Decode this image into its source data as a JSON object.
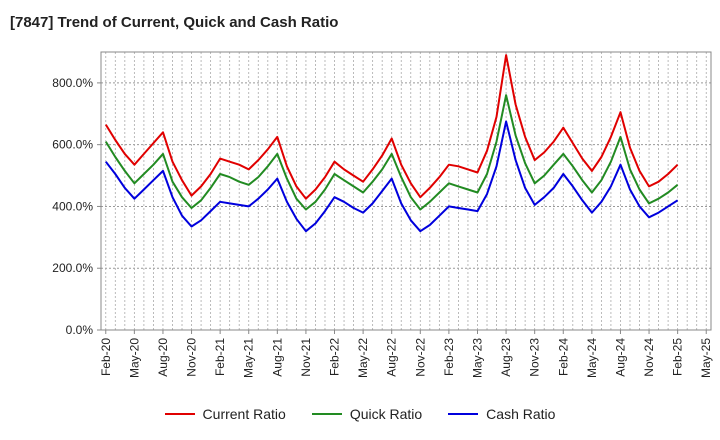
{
  "header": {
    "title": "[7847]  Trend of Current, Quick and Cash Ratio"
  },
  "chart_data": {
    "type": "line",
    "title": "[7847]  Trend of Current, Quick and Cash Ratio",
    "ylim": [
      0,
      900
    ],
    "y_ticks": [
      0,
      200,
      400,
      600,
      800
    ],
    "y_tick_labels": [
      "0.0%",
      "200.0%",
      "400.0%",
      "600.0%",
      "800.0%"
    ],
    "grid": true,
    "legend_position": "bottom",
    "x_tick_labels": [
      "Feb-20",
      "May-20",
      "Aug-20",
      "Nov-20",
      "Feb-21",
      "May-21",
      "Aug-21",
      "Nov-21",
      "Feb-22",
      "May-22",
      "Aug-22",
      "Nov-22",
      "Feb-23",
      "May-23",
      "Aug-23",
      "Nov-23",
      "Feb-24",
      "May-24",
      "Aug-24",
      "Nov-24",
      "Feb-25",
      "May-25"
    ],
    "x": [
      "Feb-20",
      "Mar-20",
      "Apr-20",
      "May-20",
      "Jun-20",
      "Jul-20",
      "Aug-20",
      "Sep-20",
      "Oct-20",
      "Nov-20",
      "Dec-20",
      "Jan-21",
      "Feb-21",
      "Mar-21",
      "Apr-21",
      "May-21",
      "Jun-21",
      "Jul-21",
      "Aug-21",
      "Sep-21",
      "Oct-21",
      "Nov-21",
      "Dec-21",
      "Jan-22",
      "Feb-22",
      "Mar-22",
      "Apr-22",
      "May-22",
      "Jun-22",
      "Jul-22",
      "Aug-22",
      "Sep-22",
      "Oct-22",
      "Nov-22",
      "Dec-22",
      "Jan-23",
      "Feb-23",
      "Mar-23",
      "Apr-23",
      "May-23",
      "Jun-23",
      "Jul-23",
      "Aug-23",
      "Sep-23",
      "Oct-23",
      "Nov-23",
      "Dec-23",
      "Jan-24",
      "Feb-24",
      "Mar-24",
      "Apr-24",
      "May-24",
      "Jun-24",
      "Jul-24",
      "Aug-24",
      "Sep-24",
      "Oct-24",
      "Nov-24",
      "Dec-24",
      "Jan-25",
      "Feb-25"
    ],
    "series": [
      {
        "name": "Current Ratio",
        "color": "#e00000",
        "values": [
          665,
          615,
          570,
          535,
          570,
          605,
          640,
          545,
          485,
          435,
          465,
          505,
          555,
          545,
          535,
          520,
          550,
          585,
          625,
          530,
          465,
          425,
          455,
          495,
          545,
          520,
          500,
          480,
          520,
          565,
          620,
          535,
          475,
          430,
          460,
          495,
          535,
          530,
          520,
          510,
          580,
          690,
          890,
          730,
          625,
          550,
          575,
          610,
          655,
          605,
          555,
          515,
          560,
          625,
          705,
          590,
          515,
          465,
          480,
          505,
          535
        ]
      },
      {
        "name": "Quick Ratio",
        "color": "#228b22",
        "values": [
          610,
          560,
          515,
          475,
          505,
          535,
          570,
          480,
          430,
          395,
          420,
          460,
          505,
          495,
          480,
          470,
          495,
          530,
          570,
          490,
          425,
          390,
          415,
          455,
          505,
          485,
          465,
          445,
          480,
          520,
          570,
          495,
          430,
          390,
          415,
          445,
          475,
          465,
          455,
          445,
          505,
          610,
          760,
          630,
          540,
          475,
          500,
          535,
          570,
          530,
          485,
          445,
          485,
          545,
          625,
          520,
          455,
          410,
          425,
          445,
          470
        ]
      },
      {
        "name": "Cash Ratio",
        "color": "#0000dd",
        "values": [
          545,
          505,
          460,
          425,
          455,
          485,
          515,
          430,
          370,
          335,
          355,
          385,
          415,
          410,
          405,
          400,
          425,
          455,
          490,
          415,
          360,
          320,
          345,
          385,
          430,
          415,
          395,
          380,
          410,
          450,
          490,
          410,
          355,
          320,
          340,
          370,
          400,
          395,
          390,
          385,
          440,
          530,
          675,
          550,
          460,
          405,
          430,
          460,
          505,
          465,
          420,
          380,
          415,
          465,
          535,
          455,
          400,
          365,
          380,
          400,
          420
        ]
      }
    ]
  }
}
